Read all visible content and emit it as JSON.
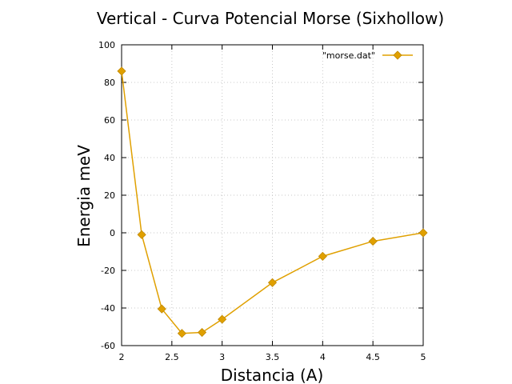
{
  "chart_data": {
    "type": "line",
    "title": "Vertical - Curva Potencial Morse (Sixhollow)",
    "xlabel": "Distancia (A)",
    "ylabel": "Energia meV",
    "xlim": [
      2,
      5
    ],
    "ylim": [
      -60,
      100
    ],
    "xticks": [
      2,
      2.5,
      3,
      3.5,
      4,
      4.5,
      5
    ],
    "xtick_labels": [
      "2",
      "2.5",
      "3",
      "3.5",
      "4",
      "4.5",
      "5"
    ],
    "yticks": [
      -60,
      -40,
      -20,
      0,
      20,
      40,
      60,
      80,
      100
    ],
    "ytick_labels": [
      "-60",
      "-40",
      "-20",
      "0",
      "20",
      "40",
      "60",
      "80",
      "100"
    ],
    "grid": true,
    "legend_position": "top-right",
    "series": [
      {
        "name": "\"morse.dat\"",
        "color": "#e0a000",
        "marker": "diamond",
        "x": [
          2.0,
          2.2,
          2.4,
          2.6,
          2.8,
          3.0,
          3.5,
          4.0,
          4.5,
          5.0
        ],
        "y": [
          86,
          -1,
          -40.5,
          -53.5,
          -53,
          -46,
          -26.5,
          -12.5,
          -4.5,
          0
        ]
      }
    ]
  }
}
